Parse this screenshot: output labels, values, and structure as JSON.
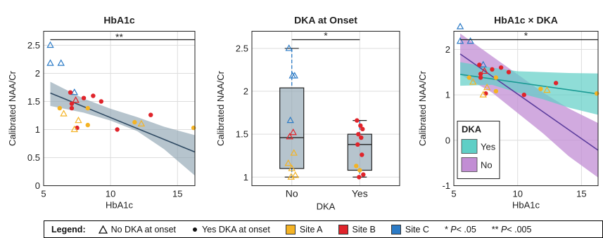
{
  "chart_data": [
    {
      "type": "scatter",
      "title": "HbA1c",
      "xlabel": "HbA1c",
      "ylabel": "Calibrated NAA/Cr",
      "xlim": [
        5,
        16.3
      ],
      "ylim": [
        0,
        2.75
      ],
      "xticks": [
        "5",
        "10",
        "15"
      ],
      "yticks": [
        "0",
        "0.5",
        "1",
        "1.5",
        "2",
        "2.5"
      ],
      "grid": true,
      "significance": "**",
      "points": [
        {
          "x": 5.5,
          "y": 2.5,
          "site": "C",
          "dka": "No"
        },
        {
          "x": 5.5,
          "y": 2.18,
          "site": "C",
          "dka": "No"
        },
        {
          "x": 6.3,
          "y": 2.18,
          "site": "C",
          "dka": "No"
        },
        {
          "x": 7.3,
          "y": 1.66,
          "site": "C",
          "dka": "No"
        },
        {
          "x": 7.0,
          "y": 1.66,
          "site": "B",
          "dka": "Yes"
        },
        {
          "x": 7.4,
          "y": 1.52,
          "site": "B",
          "dka": "No"
        },
        {
          "x": 7.1,
          "y": 1.46,
          "site": "B",
          "dka": "Yes"
        },
        {
          "x": 7.1,
          "y": 1.38,
          "site": "B",
          "dka": "Yes"
        },
        {
          "x": 8.0,
          "y": 1.56,
          "site": "B",
          "dka": "Yes"
        },
        {
          "x": 8.7,
          "y": 1.6,
          "site": "B",
          "dka": "Yes"
        },
        {
          "x": 9.3,
          "y": 1.5,
          "site": "B",
          "dka": "Yes"
        },
        {
          "x": 13.0,
          "y": 1.26,
          "site": "B",
          "dka": "Yes"
        },
        {
          "x": 10.5,
          "y": 1.0,
          "site": "B",
          "dka": "Yes"
        },
        {
          "x": 7.5,
          "y": 1.03,
          "site": "B",
          "dka": "Yes"
        },
        {
          "x": 6.2,
          "y": 1.38,
          "site": "A",
          "dka": "Yes"
        },
        {
          "x": 6.5,
          "y": 1.28,
          "site": "A",
          "dka": "No"
        },
        {
          "x": 8.3,
          "y": 1.38,
          "site": "A",
          "dka": "Yes"
        },
        {
          "x": 7.6,
          "y": 1.16,
          "site": "A",
          "dka": "No"
        },
        {
          "x": 7.3,
          "y": 1.0,
          "site": "A",
          "dka": "No"
        },
        {
          "x": 8.3,
          "y": 1.08,
          "site": "A",
          "dka": "Yes"
        },
        {
          "x": 11.8,
          "y": 1.13,
          "site": "A",
          "dka": "Yes"
        },
        {
          "x": 12.3,
          "y": 1.1,
          "site": "A",
          "dka": "No"
        },
        {
          "x": 16.2,
          "y": 1.03,
          "site": "A",
          "dka": "Yes"
        }
      ],
      "fit": {
        "x": [
          5.5,
          16.3
        ],
        "y": [
          1.65,
          0.6
        ]
      }
    },
    {
      "type": "box",
      "title": "DKA at Onset",
      "xlabel": "DKA",
      "ylabel": "Calibrated NAA/Cr",
      "categories": [
        "No",
        "Yes"
      ],
      "ylim": [
        0.9,
        2.7
      ],
      "yticks": [
        "1",
        "1.5",
        "2",
        "2.5"
      ],
      "grid": true,
      "significance": "*",
      "boxes": [
        {
          "name": "No",
          "min": 1.0,
          "q1": 1.1,
          "median": 1.46,
          "q3": 2.04,
          "max": 2.5
        },
        {
          "name": "Yes",
          "min": 1.0,
          "q1": 1.08,
          "median": 1.38,
          "q3": 1.5,
          "max": 1.66
        }
      ],
      "points": [
        {
          "cat": "No",
          "y": 2.5,
          "site": "C",
          "dka": "No"
        },
        {
          "cat": "No",
          "y": 2.18,
          "site": "C",
          "dka": "No"
        },
        {
          "cat": "No",
          "y": 2.18,
          "site": "C",
          "dka": "No"
        },
        {
          "cat": "No",
          "y": 1.66,
          "site": "C",
          "dka": "No"
        },
        {
          "cat": "No",
          "y": 1.52,
          "site": "B",
          "dka": "No"
        },
        {
          "cat": "No",
          "y": 1.47,
          "site": "B",
          "dka": "No"
        },
        {
          "cat": "No",
          "y": 1.28,
          "site": "A",
          "dka": "No"
        },
        {
          "cat": "No",
          "y": 1.16,
          "site": "A",
          "dka": "No"
        },
        {
          "cat": "No",
          "y": 1.1,
          "site": "A",
          "dka": "No"
        },
        {
          "cat": "No",
          "y": 1.02,
          "site": "A",
          "dka": "No"
        },
        {
          "cat": "No",
          "y": 1.0,
          "site": "A",
          "dka": "No"
        },
        {
          "cat": "Yes",
          "y": 1.66,
          "site": "B",
          "dka": "Yes"
        },
        {
          "cat": "Yes",
          "y": 1.6,
          "site": "B",
          "dka": "Yes"
        },
        {
          "cat": "Yes",
          "y": 1.56,
          "site": "B",
          "dka": "Yes"
        },
        {
          "cat": "Yes",
          "y": 1.5,
          "site": "B",
          "dka": "Yes"
        },
        {
          "cat": "Yes",
          "y": 1.46,
          "site": "B",
          "dka": "Yes"
        },
        {
          "cat": "Yes",
          "y": 1.38,
          "site": "B",
          "dka": "Yes"
        },
        {
          "cat": "Yes",
          "y": 1.26,
          "site": "B",
          "dka": "Yes"
        },
        {
          "cat": "Yes",
          "y": 1.13,
          "site": "A",
          "dka": "Yes"
        },
        {
          "cat": "Yes",
          "y": 1.08,
          "site": "A",
          "dka": "Yes"
        },
        {
          "cat": "Yes",
          "y": 1.03,
          "site": "B",
          "dka": "Yes"
        },
        {
          "cat": "Yes",
          "y": 1.0,
          "site": "B",
          "dka": "Yes"
        }
      ]
    },
    {
      "type": "scatter",
      "title": "HbA1c × DKA",
      "xlabel": "HbA1c",
      "ylabel": "Calibrated NAA/Cr",
      "xlim": [
        5,
        16.3
      ],
      "ylim": [
        -1,
        2.4
      ],
      "xticks": [
        "5",
        "10",
        "15"
      ],
      "yticks": [
        "-1",
        "0",
        "1",
        "2"
      ],
      "grid": true,
      "significance": "*",
      "legend": {
        "title": "DKA",
        "position": "bottom-left",
        "entries": [
          {
            "name": "Yes",
            "color": "#5fcfc6"
          },
          {
            "name": "No",
            "color": "#c28ed4"
          }
        ]
      },
      "points": [
        {
          "x": 5.5,
          "y": 2.5,
          "site": "C",
          "dka": "No"
        },
        {
          "x": 5.5,
          "y": 2.18,
          "site": "C",
          "dka": "No"
        },
        {
          "x": 6.3,
          "y": 2.18,
          "site": "C",
          "dka": "No"
        },
        {
          "x": 7.3,
          "y": 1.66,
          "site": "C",
          "dka": "No"
        },
        {
          "x": 7.0,
          "y": 1.66,
          "site": "B",
          "dka": "Yes"
        },
        {
          "x": 7.4,
          "y": 1.52,
          "site": "B",
          "dka": "No"
        },
        {
          "x": 7.1,
          "y": 1.46,
          "site": "B",
          "dka": "Yes"
        },
        {
          "x": 7.1,
          "y": 1.38,
          "site": "B",
          "dka": "Yes"
        },
        {
          "x": 8.0,
          "y": 1.56,
          "site": "B",
          "dka": "Yes"
        },
        {
          "x": 8.7,
          "y": 1.6,
          "site": "B",
          "dka": "Yes"
        },
        {
          "x": 9.3,
          "y": 1.5,
          "site": "B",
          "dka": "Yes"
        },
        {
          "x": 13.0,
          "y": 1.26,
          "site": "B",
          "dka": "Yes"
        },
        {
          "x": 10.5,
          "y": 1.0,
          "site": "B",
          "dka": "Yes"
        },
        {
          "x": 7.5,
          "y": 1.03,
          "site": "B",
          "dka": "Yes"
        },
        {
          "x": 6.2,
          "y": 1.38,
          "site": "A",
          "dka": "Yes"
        },
        {
          "x": 6.5,
          "y": 1.28,
          "site": "A",
          "dka": "No"
        },
        {
          "x": 8.3,
          "y": 1.38,
          "site": "A",
          "dka": "Yes"
        },
        {
          "x": 7.6,
          "y": 1.16,
          "site": "A",
          "dka": "No"
        },
        {
          "x": 7.3,
          "y": 1.0,
          "site": "A",
          "dka": "No"
        },
        {
          "x": 8.3,
          "y": 1.08,
          "site": "A",
          "dka": "Yes"
        },
        {
          "x": 11.8,
          "y": 1.13,
          "site": "A",
          "dka": "Yes"
        },
        {
          "x": 12.3,
          "y": 1.1,
          "site": "A",
          "dka": "No"
        },
        {
          "x": 16.2,
          "y": 1.03,
          "site": "A",
          "dka": "Yes"
        }
      ],
      "fit_yes": {
        "x": [
          5.5,
          16.3
        ],
        "y": [
          1.45,
          1.02
        ]
      },
      "fit_no": {
        "x": [
          5.5,
          16.3
        ],
        "y": [
          1.9,
          -0.22
        ]
      }
    }
  ],
  "legend": {
    "title": "Legend:",
    "no_dka": "No DKA at onset",
    "yes_dka": "Yes DKA at onset",
    "site_a": "Site A",
    "site_b": "Site B",
    "site_c": "Site C",
    "sig1_p": "P",
    "sig1_star": "*",
    "sig1_val": " < .05",
    "sig2_p": "P",
    "sig2_star": "**",
    "sig2_val": " < .005"
  },
  "colors": {
    "site_a": "#f4b324",
    "site_b": "#e0242b",
    "site_c": "#2c7bc6",
    "fit_line": "#2f4a63",
    "band": "#8fa4b2",
    "yes_band": "#5fcfc6",
    "no_band": "#c28ed4",
    "yes_line": "#1b9b94",
    "no_line": "#5a3c9c"
  }
}
